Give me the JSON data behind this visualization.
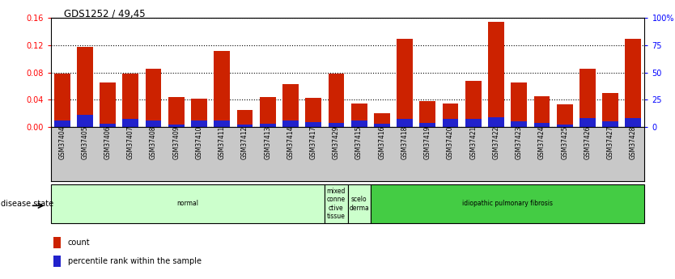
{
  "title": "GDS1252 / 49,45",
  "samples": [
    "GSM37404",
    "GSM37405",
    "GSM37406",
    "GSM37407",
    "GSM37408",
    "GSM37409",
    "GSM37410",
    "GSM37411",
    "GSM37412",
    "GSM37413",
    "GSM37414",
    "GSM37417",
    "GSM37429",
    "GSM37415",
    "GSM37416",
    "GSM37418",
    "GSM37419",
    "GSM37420",
    "GSM37421",
    "GSM37422",
    "GSM37423",
    "GSM37424",
    "GSM37425",
    "GSM37426",
    "GSM37427",
    "GSM37428"
  ],
  "count_values": [
    0.079,
    0.118,
    0.065,
    0.079,
    0.085,
    0.044,
    0.041,
    0.112,
    0.025,
    0.044,
    0.063,
    0.043,
    0.079,
    0.035,
    0.02,
    0.13,
    0.038,
    0.034,
    0.068,
    0.155,
    0.065,
    0.045,
    0.033,
    0.085,
    0.05,
    0.13
  ],
  "percentile_values": [
    0.01,
    0.018,
    0.005,
    0.012,
    0.01,
    0.004,
    0.009,
    0.01,
    0.004,
    0.005,
    0.01,
    0.007,
    0.006,
    0.01,
    0.005,
    0.012,
    0.006,
    0.012,
    0.012,
    0.014,
    0.008,
    0.006,
    0.004,
    0.013,
    0.008,
    0.013
  ],
  "bar_color": "#CC2200",
  "percentile_color": "#2222CC",
  "ylim": [
    0,
    0.16
  ],
  "yticks_left": [
    0,
    0.04,
    0.08,
    0.12,
    0.16
  ],
  "yticks_right": [
    0,
    25,
    50,
    75,
    100
  ],
  "disease_groups": [
    {
      "label": "normal",
      "start": 0,
      "end": 12,
      "color": "#CCFFCC"
    },
    {
      "label": "mixed\nconne\nctive\ntissue",
      "start": 12,
      "end": 13,
      "color": "#CCFFCC"
    },
    {
      "label": "scelo\nderma",
      "start": 13,
      "end": 14,
      "color": "#CCFFCC"
    },
    {
      "label": "idiopathic pulmonary fibrosis",
      "start": 14,
      "end": 26,
      "color": "#44CC44"
    }
  ],
  "disease_state_label": "disease state",
  "legend_count": "count",
  "legend_percentile": "percentile rank within the sample",
  "background_color": "#ffffff",
  "xtick_bg_color": "#C8C8C8"
}
